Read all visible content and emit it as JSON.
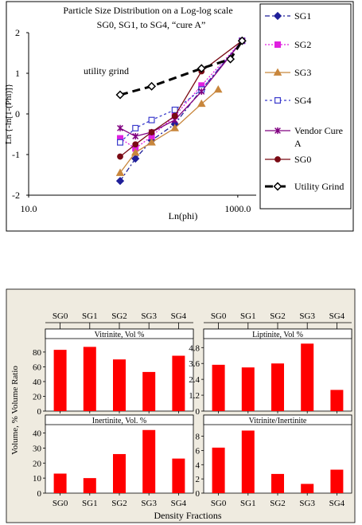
{
  "chart_data": [
    {
      "type": "line",
      "title": "Particle Size Distribution on a Log-log scale",
      "subtitle": "SG0, SG1, to SG4, “cure A”",
      "xlabel": "Ln(phi)",
      "ylabel": "Ln {-ln[1-(Phi)]}",
      "x_scale": "log",
      "xlim": [
        10,
        1500
      ],
      "ylim": [
        -2,
        2
      ],
      "x_tick_labels": [
        "10.0",
        "1000.0"
      ],
      "y_tick_labels": [
        "2",
        "1",
        "0",
        "-1",
        "-2"
      ],
      "annotation": "utility grind",
      "legend_position": "right",
      "series": [
        {
          "name": "SG1",
          "color": "#1f1f99",
          "marker": "diamond",
          "dash": "6,3,2,3",
          "x": [
            75,
            105,
            150,
            250,
            450,
            1100
          ],
          "y": [
            -1.65,
            -1.1,
            -0.65,
            -0.25,
            0.6,
            1.8
          ]
        },
        {
          "name": "SG2",
          "color": "#e020e0",
          "marker": "square",
          "dash": "2,2",
          "x": [
            75,
            105,
            150,
            250,
            450,
            1100
          ],
          "y": [
            -0.6,
            -0.85,
            -0.55,
            -0.05,
            0.7,
            1.8
          ]
        },
        {
          "name": "SG3",
          "color": "#c8863c",
          "marker": "triangle",
          "dash": "",
          "x": [
            75,
            105,
            150,
            250,
            450,
            650
          ],
          "y": [
            -1.45,
            -0.95,
            -0.7,
            -0.35,
            0.25,
            0.6
          ]
        },
        {
          "name": "SG4",
          "color": "#3b3bcc",
          "marker": "square-open",
          "dash": "3,3",
          "x": [
            75,
            105,
            150,
            250,
            450,
            1100
          ],
          "y": [
            -0.7,
            -0.35,
            -0.15,
            0.1,
            0.6,
            1.8
          ]
        },
        {
          "name": "Vendor Cure A",
          "color": "#800080",
          "marker": "star",
          "dash": "",
          "x": [
            75,
            105,
            150,
            250,
            450,
            1100
          ],
          "y": [
            -0.35,
            -0.55,
            -0.45,
            -0.15,
            0.55,
            1.8
          ]
        },
        {
          "name": "SG0",
          "color": "#7a0a14",
          "marker": "circle",
          "dash": "",
          "x": [
            75,
            105,
            150,
            250,
            450,
            1100
          ],
          "y": [
            -1.05,
            -0.75,
            -0.45,
            -0.05,
            1.05,
            1.8
          ]
        },
        {
          "name": "Utility Grind",
          "color": "#000000",
          "marker": "diamond-open",
          "dash": "10,6",
          "thick": true,
          "x": [
            75,
            150,
            450,
            850,
            1100
          ],
          "y": [
            0.47,
            0.68,
            1.12,
            1.35,
            1.8
          ]
        }
      ]
    },
    {
      "type": "bar",
      "xlabel": "Density Fractions",
      "ylabel": "Volume, % Volume Ratio",
      "categories": [
        "SG0",
        "SG1",
        "SG2",
        "SG3",
        "SG4"
      ],
      "bar_color": "#ff0000",
      "panels": [
        {
          "title": "Vitrinite, Vol %",
          "values": [
            83,
            87,
            70,
            53,
            75
          ],
          "ylim": [
            0,
            95
          ],
          "ticks": [
            "0",
            "20",
            "40",
            "60",
            "80"
          ]
        },
        {
          "title": "Liptinite, Vol %",
          "values": [
            3.5,
            3.3,
            3.6,
            5.1,
            1.6
          ],
          "ylim": [
            0,
            5.3
          ],
          "ticks": [
            "0",
            "1.2",
            "2.4",
            "3.6",
            "4.8"
          ]
        },
        {
          "title": "Inertinite, Vol. %",
          "values": [
            13,
            10,
            26,
            42,
            23
          ],
          "ylim": [
            0,
            44
          ],
          "ticks": [
            "0",
            "10",
            "20",
            "30",
            "40"
          ]
        },
        {
          "title": "Vitrinite/Inertinite",
          "values": [
            6.4,
            8.8,
            2.7,
            1.3,
            3.3
          ],
          "ylim": [
            0,
            9.3
          ],
          "ticks": [
            "0",
            "2",
            "4",
            "6",
            "8"
          ]
        }
      ]
    }
  ]
}
